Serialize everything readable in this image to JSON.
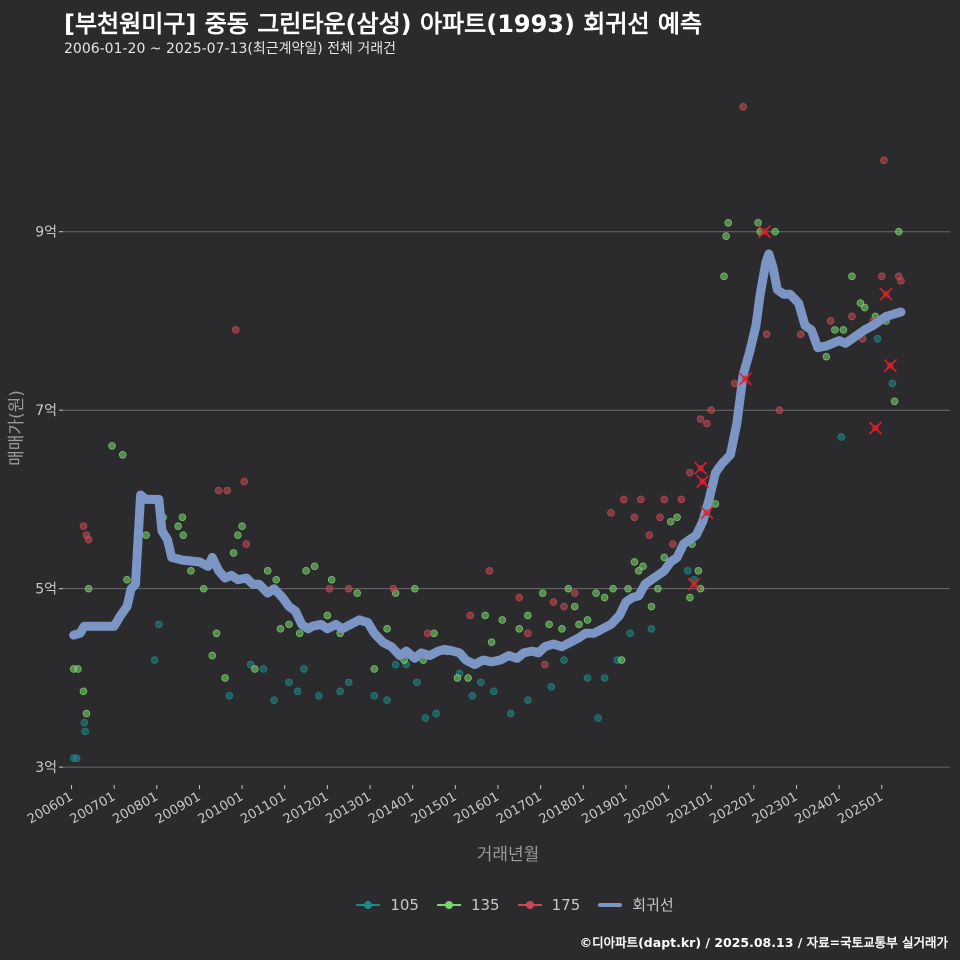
{
  "title": "[부천원미구] 중동 그린타운(삼성) 아파트(1993) 회귀선 예측",
  "subtitle": "2006-01-20 ~ 2025-07-13(최근계약일) 전체 거래건",
  "footer": "©디아파트(dapt.kr) / 2025.08.13 / 자료=국토교통부 실거래가",
  "colors": {
    "background": "#2b2a2c",
    "grid": "#6a6a6a",
    "axis_text": "#c8c8c8",
    "series_105": "#1f8a8a",
    "series_135": "#7bd66e",
    "series_175": "#c84a55",
    "regression": "#7b96c4",
    "cancelled_marker": "#e0202a"
  },
  "chart_data": {
    "type": "scatter",
    "title": "[부천원미구] 중동 그린타운(삼성) 아파트(1993) 회귀선 예측",
    "xlabel": "거래년월",
    "ylabel": "매매가(원)",
    "xlim": [
      2005.8,
      2026.6
    ],
    "ylim": [
      2.8,
      10.7
    ],
    "y_ticks": [
      3,
      5,
      7,
      9
    ],
    "y_tick_labels": [
      "3억",
      "5억",
      "7억",
      "9억"
    ],
    "x_ticks": [
      2006,
      2007,
      2008,
      2009,
      2010,
      2011,
      2012,
      2013,
      2014,
      2015,
      2016,
      2017,
      2018,
      2019,
      2020,
      2021,
      2022,
      2023,
      2024,
      2025
    ],
    "x_tick_labels": [
      "200601",
      "200701",
      "200801",
      "200901",
      "201001",
      "201101",
      "201201",
      "201301",
      "201401",
      "201501",
      "201601",
      "201701",
      "201801",
      "201901",
      "202001",
      "202101",
      "202201",
      "202301",
      "202401",
      "202501"
    ],
    "grid": true,
    "legend": {
      "position": "bottom",
      "entries": [
        {
          "key": "105",
          "label": "105",
          "color": "#1f8a8a",
          "kind": "point"
        },
        {
          "key": "135",
          "label": "135",
          "color": "#7bd66e",
          "kind": "point"
        },
        {
          "key": "175",
          "label": "175",
          "color": "#c84a55",
          "kind": "point"
        },
        {
          "key": "reg",
          "label": "회귀선",
          "color": "#7b96c4",
          "kind": "line"
        }
      ]
    },
    "series": [
      {
        "name": "105",
        "color": "#1f8a8a",
        "points": [
          [
            2006.05,
            3.1
          ],
          [
            2006.12,
            3.1
          ],
          [
            2006.3,
            3.5
          ],
          [
            2006.32,
            3.4
          ],
          [
            2007.95,
            4.2
          ],
          [
            2008.05,
            4.6
          ],
          [
            2009.7,
            3.8
          ],
          [
            2010.2,
            4.15
          ],
          [
            2010.5,
            4.1
          ],
          [
            2010.75,
            3.75
          ],
          [
            2011.1,
            3.95
          ],
          [
            2011.3,
            3.85
          ],
          [
            2011.45,
            4.1
          ],
          [
            2011.8,
            3.8
          ],
          [
            2012.3,
            3.85
          ],
          [
            2012.5,
            3.95
          ],
          [
            2013.1,
            3.8
          ],
          [
            2013.4,
            3.75
          ],
          [
            2013.6,
            4.15
          ],
          [
            2013.85,
            4.15
          ],
          [
            2014.1,
            3.95
          ],
          [
            2014.3,
            3.55
          ],
          [
            2014.55,
            3.6
          ],
          [
            2014.8,
            4.3
          ],
          [
            2015.1,
            4.05
          ],
          [
            2015.4,
            3.8
          ],
          [
            2015.6,
            3.95
          ],
          [
            2015.9,
            3.85
          ],
          [
            2016.3,
            3.6
          ],
          [
            2016.7,
            3.75
          ],
          [
            2017.25,
            3.9
          ],
          [
            2017.55,
            4.2
          ],
          [
            2018.1,
            4.0
          ],
          [
            2018.35,
            3.55
          ],
          [
            2018.5,
            4.0
          ],
          [
            2018.8,
            4.2
          ],
          [
            2019.1,
            4.5
          ],
          [
            2019.6,
            4.55
          ],
          [
            2020.45,
            5.2
          ],
          [
            2020.6,
            5.1
          ],
          [
            2024.05,
            6.7
          ],
          [
            2024.9,
            7.8
          ],
          [
            2025.25,
            7.3
          ]
        ]
      },
      {
        "name": "135",
        "color": "#7bd66e",
        "points": [
          [
            2006.05,
            4.1
          ],
          [
            2006.15,
            4.1
          ],
          [
            2006.2,
            4.5
          ],
          [
            2006.28,
            3.85
          ],
          [
            2006.35,
            3.6
          ],
          [
            2006.4,
            5.0
          ],
          [
            2006.95,
            6.6
          ],
          [
            2007.2,
            6.5
          ],
          [
            2007.3,
            5.1
          ],
          [
            2007.75,
            5.6
          ],
          [
            2008.15,
            5.8
          ],
          [
            2008.5,
            5.7
          ],
          [
            2008.6,
            5.8
          ],
          [
            2008.62,
            5.6
          ],
          [
            2008.8,
            5.2
          ],
          [
            2009.1,
            5.0
          ],
          [
            2009.3,
            4.25
          ],
          [
            2009.4,
            4.5
          ],
          [
            2009.6,
            4.0
          ],
          [
            2009.8,
            5.4
          ],
          [
            2009.9,
            5.6
          ],
          [
            2010.0,
            5.7
          ],
          [
            2010.3,
            4.1
          ],
          [
            2010.6,
            5.2
          ],
          [
            2010.8,
            5.1
          ],
          [
            2010.9,
            4.55
          ],
          [
            2011.1,
            4.6
          ],
          [
            2011.35,
            4.5
          ],
          [
            2011.5,
            5.2
          ],
          [
            2011.7,
            5.25
          ],
          [
            2012.0,
            4.7
          ],
          [
            2012.1,
            5.1
          ],
          [
            2012.3,
            4.5
          ],
          [
            2012.7,
            4.95
          ],
          [
            2013.1,
            4.1
          ],
          [
            2013.4,
            4.55
          ],
          [
            2013.6,
            4.95
          ],
          [
            2013.8,
            4.2
          ],
          [
            2014.05,
            5.0
          ],
          [
            2014.25,
            4.2
          ],
          [
            2014.5,
            4.5
          ],
          [
            2014.8,
            4.3
          ],
          [
            2015.05,
            4.0
          ],
          [
            2015.3,
            4.0
          ],
          [
            2015.5,
            4.15
          ],
          [
            2015.7,
            4.7
          ],
          [
            2015.85,
            4.4
          ],
          [
            2016.1,
            4.65
          ],
          [
            2016.5,
            4.55
          ],
          [
            2016.7,
            4.7
          ],
          [
            2016.9,
            4.3
          ],
          [
            2017.05,
            4.95
          ],
          [
            2017.2,
            4.6
          ],
          [
            2017.5,
            4.55
          ],
          [
            2017.65,
            5.0
          ],
          [
            2017.8,
            4.8
          ],
          [
            2017.9,
            4.6
          ],
          [
            2018.1,
            4.65
          ],
          [
            2018.3,
            4.95
          ],
          [
            2018.5,
            4.9
          ],
          [
            2018.7,
            5.0
          ],
          [
            2018.9,
            4.2
          ],
          [
            2019.05,
            5.0
          ],
          [
            2019.2,
            5.3
          ],
          [
            2019.3,
            5.2
          ],
          [
            2019.4,
            5.25
          ],
          [
            2019.6,
            4.8
          ],
          [
            2019.75,
            5.0
          ],
          [
            2019.9,
            5.35
          ],
          [
            2020.05,
            5.75
          ],
          [
            2020.2,
            5.8
          ],
          [
            2020.5,
            4.9
          ],
          [
            2020.55,
            5.5
          ],
          [
            2020.7,
            5.2
          ],
          [
            2020.75,
            5.0
          ],
          [
            2021.1,
            5.95
          ],
          [
            2021.3,
            8.5
          ],
          [
            2021.35,
            8.95
          ],
          [
            2021.4,
            9.1
          ],
          [
            2022.1,
            9.1
          ],
          [
            2022.15,
            9.0
          ],
          [
            2022.5,
            9.0
          ],
          [
            2023.7,
            7.6
          ],
          [
            2023.9,
            7.9
          ],
          [
            2024.1,
            7.9
          ],
          [
            2024.3,
            8.5
          ],
          [
            2024.5,
            8.2
          ],
          [
            2024.6,
            8.15
          ],
          [
            2024.85,
            8.05
          ],
          [
            2025.1,
            8.0
          ],
          [
            2025.3,
            7.1
          ],
          [
            2025.4,
            9.0
          ]
        ]
      },
      {
        "name": "175",
        "color": "#c84a55",
        "points": [
          [
            2006.28,
            5.7
          ],
          [
            2006.35,
            5.6
          ],
          [
            2006.4,
            5.55
          ],
          [
            2009.45,
            6.1
          ],
          [
            2009.65,
            6.1
          ],
          [
            2009.85,
            7.9
          ],
          [
            2010.05,
            6.2
          ],
          [
            2010.1,
            5.5
          ],
          [
            2012.05,
            5.0
          ],
          [
            2012.5,
            5.0
          ],
          [
            2013.55,
            5.0
          ],
          [
            2014.35,
            4.5
          ],
          [
            2015.35,
            4.7
          ],
          [
            2015.8,
            5.2
          ],
          [
            2016.5,
            4.9
          ],
          [
            2016.7,
            4.5
          ],
          [
            2017.1,
            4.15
          ],
          [
            2017.3,
            4.85
          ],
          [
            2017.55,
            4.8
          ],
          [
            2017.8,
            4.95
          ],
          [
            2018.65,
            5.85
          ],
          [
            2018.95,
            6.0
          ],
          [
            2019.2,
            5.8
          ],
          [
            2019.35,
            6.0
          ],
          [
            2019.55,
            5.6
          ],
          [
            2019.8,
            5.8
          ],
          [
            2019.9,
            6.0
          ],
          [
            2020.1,
            5.5
          ],
          [
            2020.3,
            6.0
          ],
          [
            2020.5,
            6.3
          ],
          [
            2020.75,
            6.9
          ],
          [
            2020.9,
            6.85
          ],
          [
            2021.0,
            7.0
          ],
          [
            2021.15,
            6.35
          ],
          [
            2021.55,
            7.3
          ],
          [
            2021.75,
            10.4
          ],
          [
            2022.3,
            7.85
          ],
          [
            2022.6,
            7.0
          ],
          [
            2023.1,
            7.85
          ],
          [
            2023.8,
            8.0
          ],
          [
            2024.3,
            8.05
          ],
          [
            2024.55,
            7.8
          ],
          [
            2024.8,
            8.0
          ],
          [
            2025.0,
            8.5
          ],
          [
            2025.05,
            9.8
          ],
          [
            2025.4,
            8.5
          ],
          [
            2025.45,
            8.45
          ]
        ]
      },
      {
        "name": "cancelled",
        "color": "#e0202a",
        "points": [
          [
            2020.6,
            5.05
          ],
          [
            2020.75,
            6.35
          ],
          [
            2020.8,
            6.2
          ],
          [
            2020.9,
            5.85
          ],
          [
            2021.8,
            7.35
          ],
          [
            2022.25,
            9.0
          ],
          [
            2024.85,
            6.8
          ],
          [
            2025.1,
            8.3
          ],
          [
            2025.2,
            7.5
          ]
        ]
      }
    ],
    "regression_line": [
      [
        2006.05,
        4.48
      ],
      [
        2006.2,
        4.5
      ],
      [
        2006.3,
        4.58
      ],
      [
        2007.0,
        4.58
      ],
      [
        2007.15,
        4.7
      ],
      [
        2007.3,
        4.8
      ],
      [
        2007.4,
        5.0
      ],
      [
        2007.5,
        5.05
      ],
      [
        2007.62,
        6.05
      ],
      [
        2007.75,
        6.0
      ],
      [
        2008.05,
        6.0
      ],
      [
        2008.12,
        5.65
      ],
      [
        2008.25,
        5.55
      ],
      [
        2008.35,
        5.35
      ],
      [
        2008.6,
        5.32
      ],
      [
        2009.0,
        5.3
      ],
      [
        2009.2,
        5.25
      ],
      [
        2009.3,
        5.35
      ],
      [
        2009.45,
        5.2
      ],
      [
        2009.6,
        5.12
      ],
      [
        2009.75,
        5.15
      ],
      [
        2009.9,
        5.1
      ],
      [
        2010.1,
        5.12
      ],
      [
        2010.25,
        5.05
      ],
      [
        2010.4,
        5.05
      ],
      [
        2010.6,
        4.95
      ],
      [
        2010.75,
        5.0
      ],
      [
        2010.95,
        4.9
      ],
      [
        2011.1,
        4.8
      ],
      [
        2011.25,
        4.75
      ],
      [
        2011.4,
        4.6
      ],
      [
        2011.55,
        4.55
      ],
      [
        2011.65,
        4.58
      ],
      [
        2011.85,
        4.6
      ],
      [
        2012.0,
        4.55
      ],
      [
        2012.2,
        4.6
      ],
      [
        2012.35,
        4.55
      ],
      [
        2012.55,
        4.6
      ],
      [
        2012.75,
        4.65
      ],
      [
        2012.95,
        4.62
      ],
      [
        2013.1,
        4.5
      ],
      [
        2013.3,
        4.4
      ],
      [
        2013.5,
        4.35
      ],
      [
        2013.7,
        4.25
      ],
      [
        2013.85,
        4.3
      ],
      [
        2014.05,
        4.22
      ],
      [
        2014.2,
        4.28
      ],
      [
        2014.4,
        4.25
      ],
      [
        2014.6,
        4.3
      ],
      [
        2014.75,
        4.32
      ],
      [
        2014.95,
        4.3
      ],
      [
        2015.1,
        4.28
      ],
      [
        2015.25,
        4.2
      ],
      [
        2015.45,
        4.15
      ],
      [
        2015.65,
        4.2
      ],
      [
        2015.85,
        4.18
      ],
      [
        2016.05,
        4.2
      ],
      [
        2016.25,
        4.25
      ],
      [
        2016.45,
        4.22
      ],
      [
        2016.6,
        4.28
      ],
      [
        2016.8,
        4.3
      ],
      [
        2016.95,
        4.28
      ],
      [
        2017.1,
        4.35
      ],
      [
        2017.3,
        4.38
      ],
      [
        2017.5,
        4.35
      ],
      [
        2017.7,
        4.4
      ],
      [
        2017.9,
        4.45
      ],
      [
        2018.05,
        4.5
      ],
      [
        2018.25,
        4.5
      ],
      [
        2018.45,
        4.55
      ],
      [
        2018.65,
        4.6
      ],
      [
        2018.85,
        4.7
      ],
      [
        2019.0,
        4.85
      ],
      [
        2019.15,
        4.9
      ],
      [
        2019.3,
        4.92
      ],
      [
        2019.45,
        5.05
      ],
      [
        2019.6,
        5.1
      ],
      [
        2019.75,
        5.15
      ],
      [
        2019.9,
        5.2
      ],
      [
        2020.05,
        5.3
      ],
      [
        2020.2,
        5.35
      ],
      [
        2020.35,
        5.5
      ],
      [
        2020.5,
        5.55
      ],
      [
        2020.65,
        5.6
      ],
      [
        2020.8,
        5.75
      ],
      [
        2020.95,
        6.0
      ],
      [
        2021.1,
        6.3
      ],
      [
        2021.25,
        6.4
      ],
      [
        2021.45,
        6.5
      ],
      [
        2021.6,
        6.85
      ],
      [
        2021.75,
        7.4
      ],
      [
        2021.9,
        7.65
      ],
      [
        2022.05,
        7.95
      ],
      [
        2022.15,
        8.3
      ],
      [
        2022.28,
        8.65
      ],
      [
        2022.35,
        8.75
      ],
      [
        2022.45,
        8.6
      ],
      [
        2022.55,
        8.35
      ],
      [
        2022.7,
        8.3
      ],
      [
        2022.85,
        8.3
      ],
      [
        2023.05,
        8.2
      ],
      [
        2023.2,
        7.95
      ],
      [
        2023.35,
        7.9
      ],
      [
        2023.5,
        7.7
      ],
      [
        2023.7,
        7.72
      ],
      [
        2023.85,
        7.75
      ],
      [
        2024.0,
        7.78
      ],
      [
        2024.15,
        7.75
      ],
      [
        2024.3,
        7.8
      ],
      [
        2024.45,
        7.85
      ],
      [
        2024.6,
        7.9
      ],
      [
        2024.8,
        7.95
      ],
      [
        2024.95,
        8.0
      ],
      [
        2025.1,
        8.05
      ],
      [
        2025.3,
        8.08
      ],
      [
        2025.45,
        8.1
      ]
    ]
  }
}
